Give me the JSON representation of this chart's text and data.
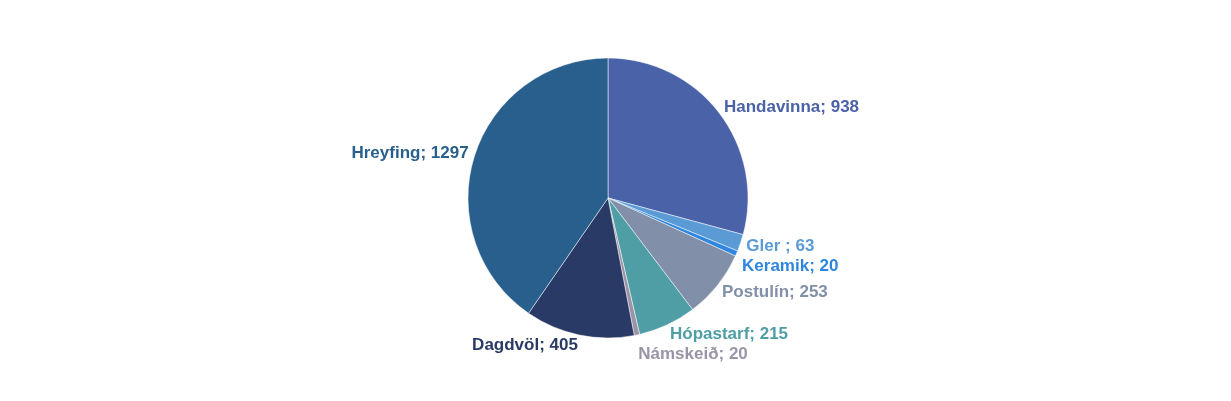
{
  "chart_data": {
    "type": "pie",
    "categories": [
      "Handavinna",
      "Gler ",
      "Keramik",
      "Postulín",
      "Hópastarf",
      "Námskeið",
      "Dagdvöl",
      "Hreyfing"
    ],
    "values": [
      938,
      63,
      20,
      253,
      215,
      20,
      405,
      1297
    ],
    "colors": [
      "#4a62a8",
      "#5b9bd5",
      "#2e86de",
      "#8190a8",
      "#4f9ea6",
      "#9a94a6",
      "#2a3a66",
      "#285f8c"
    ],
    "value_labels": [
      "; 938",
      "; 63",
      "; 20",
      "; 253",
      "; 215",
      "; 20",
      "; 405",
      "; 1297"
    ],
    "legend": false
  }
}
